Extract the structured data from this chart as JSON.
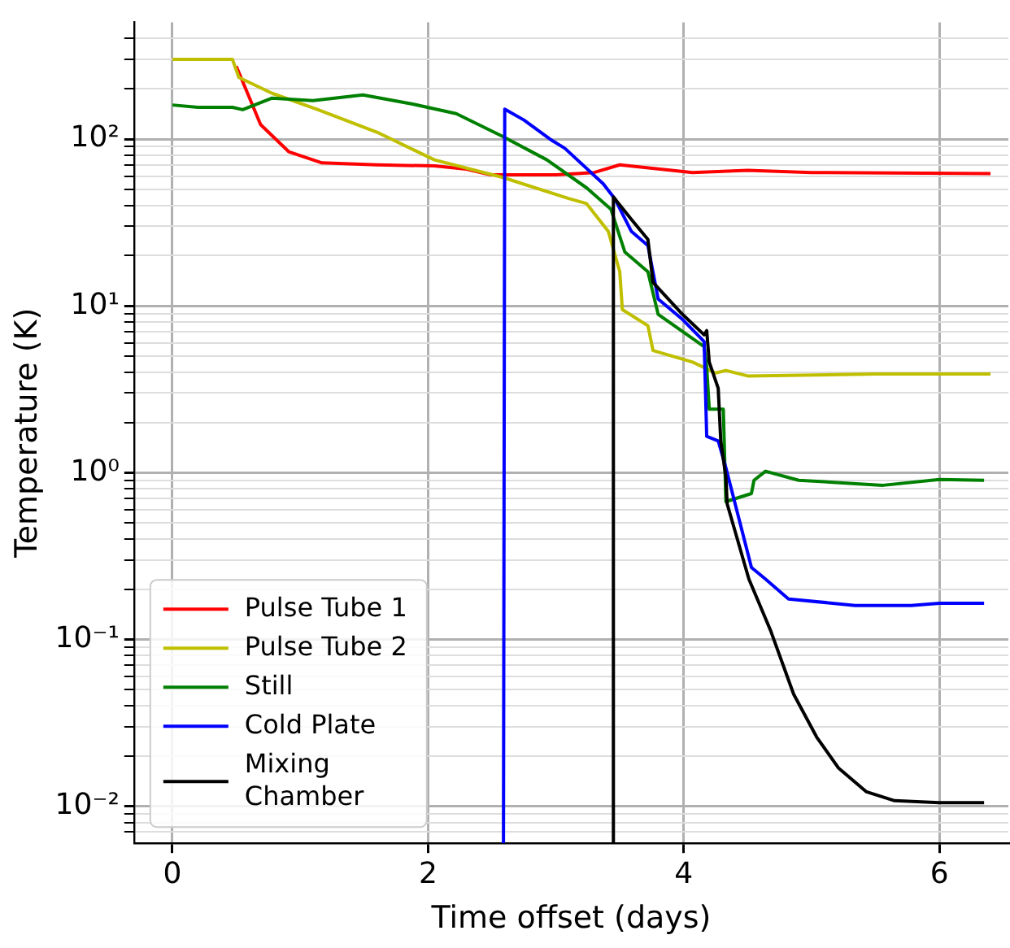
{
  "chart_data": {
    "type": "line",
    "xlabel": "Time offset (days)",
    "ylabel": "Temperature (K)",
    "log": "y",
    "grid": true,
    "legend": "bottom left",
    "marker": "none",
    "line_style": "solid",
    "xlim": [
      -0.3,
      6.54
    ],
    "xticks": [
      0,
      2,
      4,
      6
    ],
    "ylim": [
      0.006,
      500
    ],
    "yticks": [
      {
        "value": 0.007,
        "label": null
      },
      {
        "value": 0.008,
        "label": null
      },
      {
        "value": 0.009,
        "label": null
      },
      {
        "value": 0.01,
        "label": "10⁻²"
      },
      {
        "value": 0.02,
        "label": null
      },
      {
        "value": 0.03,
        "label": null
      },
      {
        "value": 0.04,
        "label": null
      },
      {
        "value": 0.05,
        "label": null
      },
      {
        "value": 0.06,
        "label": null
      },
      {
        "value": 0.07,
        "label": null
      },
      {
        "value": 0.08,
        "label": null
      },
      {
        "value": 0.09,
        "label": null
      },
      {
        "value": 0.1,
        "label": "10⁻¹"
      },
      {
        "value": 0.2,
        "label": null
      },
      {
        "value": 0.3,
        "label": null
      },
      {
        "value": 0.4,
        "label": null
      },
      {
        "value": 0.5,
        "label": null
      },
      {
        "value": 0.6,
        "label": null
      },
      {
        "value": 0.7,
        "label": null
      },
      {
        "value": 0.8,
        "label": null
      },
      {
        "value": 0.9,
        "label": null
      },
      {
        "value": 1,
        "label": "10⁰"
      },
      {
        "value": 2,
        "label": null
      },
      {
        "value": 3,
        "label": null
      },
      {
        "value": 4,
        "label": null
      },
      {
        "value": 5,
        "label": null
      },
      {
        "value": 6,
        "label": null
      },
      {
        "value": 7,
        "label": null
      },
      {
        "value": 8,
        "label": null
      },
      {
        "value": 9,
        "label": null
      },
      {
        "value": 10,
        "label": "10¹"
      },
      {
        "value": 20,
        "label": null
      },
      {
        "value": 30,
        "label": null
      },
      {
        "value": 40,
        "label": null
      },
      {
        "value": 50,
        "label": null
      },
      {
        "value": 60,
        "label": null
      },
      {
        "value": 70,
        "label": null
      },
      {
        "value": 80,
        "label": null
      },
      {
        "value": 90,
        "label": null
      },
      {
        "value": 100,
        "label": "10²"
      },
      {
        "value": 200,
        "label": null
      },
      {
        "value": 300,
        "label": null
      },
      {
        "value": 400,
        "label": null
      }
    ],
    "series": [
      {
        "name": "Pulse Tube 1",
        "color": "#ff0000",
        "x": [
          0.5,
          0.69,
          0.91,
          1.17,
          1.6,
          2.05,
          2.3,
          2.49,
          3.0,
          3.3,
          3.5,
          4.07,
          4.5,
          5.0,
          6.4
        ],
        "values": [
          273,
          122,
          84,
          72,
          70,
          69,
          66,
          61,
          61,
          63,
          70,
          63,
          65,
          63,
          62
        ]
      },
      {
        "name": "Pulse Tube 2",
        "color": "#bfbf00",
        "x": [
          0,
          0.47,
          0.52,
          0.78,
          1.13,
          1.6,
          2.05,
          2.58,
          3.1,
          3.24,
          3.41,
          3.5,
          3.52,
          3.72,
          3.76,
          4.07,
          4.25,
          4.33,
          4.5,
          5.5,
          6.4
        ],
        "values": [
          300,
          300,
          234,
          188,
          151,
          110,
          75,
          59,
          44,
          41,
          28,
          16,
          9.5,
          7.6,
          5.4,
          4.6,
          3.96,
          4.1,
          3.8,
          3.9,
          3.9
        ]
      },
      {
        "name": "Still",
        "color": "#008000",
        "x": [
          0,
          0.2,
          0.47,
          0.55,
          0.78,
          1.1,
          1.49,
          1.88,
          2.22,
          2.58,
          2.93,
          3.24,
          3.43,
          3.54,
          3.72,
          3.8,
          4.16,
          4.18,
          4.2,
          4.31,
          4.33,
          4.53,
          4.55,
          4.64,
          4.9,
          5.56,
          6.0,
          6.35
        ],
        "values": [
          160,
          155,
          155,
          150,
          176,
          170,
          184,
          162,
          142,
          104,
          75,
          51,
          38,
          21,
          16,
          8.9,
          5.7,
          4.3,
          2.4,
          2.4,
          0.67,
          0.75,
          0.9,
          1.02,
          0.9,
          0.84,
          0.91,
          0.9
        ]
      },
      {
        "name": "Cold Plate",
        "color": "#0000ff",
        "x": [
          2.59,
          2.6,
          2.75,
          2.97,
          3.07,
          3.37,
          3.46,
          3.59,
          3.72,
          3.8,
          3.99,
          4.16,
          4.18,
          4.27,
          4.33,
          4.53,
          4.64,
          4.82,
          5.34,
          5.78,
          6.0,
          6.35
        ],
        "values": [
          0.006,
          151,
          130,
          98,
          88,
          54,
          44,
          28,
          23,
          11,
          8.3,
          6.1,
          1.65,
          1.55,
          1.07,
          0.27,
          0.23,
          0.175,
          0.16,
          0.16,
          0.165,
          0.165
        ]
      },
      {
        "name": "Mixing Chamber",
        "color": "#000000",
        "x": [
          3.45,
          3.45,
          3.59,
          3.72,
          3.76,
          3.99,
          4.16,
          4.18,
          4.2,
          4.27,
          4.29,
          4.33,
          4.34,
          4.51,
          4.68,
          4.86,
          5.04,
          5.21,
          5.43,
          5.65,
          6.0,
          6.35
        ],
        "values": [
          0.006,
          45,
          33,
          25,
          13.8,
          8.9,
          6.7,
          7.1,
          4.6,
          3.2,
          1.55,
          0.94,
          0.65,
          0.23,
          0.113,
          0.047,
          0.026,
          0.017,
          0.0122,
          0.0108,
          0.0105,
          0.0105
        ]
      }
    ]
  }
}
